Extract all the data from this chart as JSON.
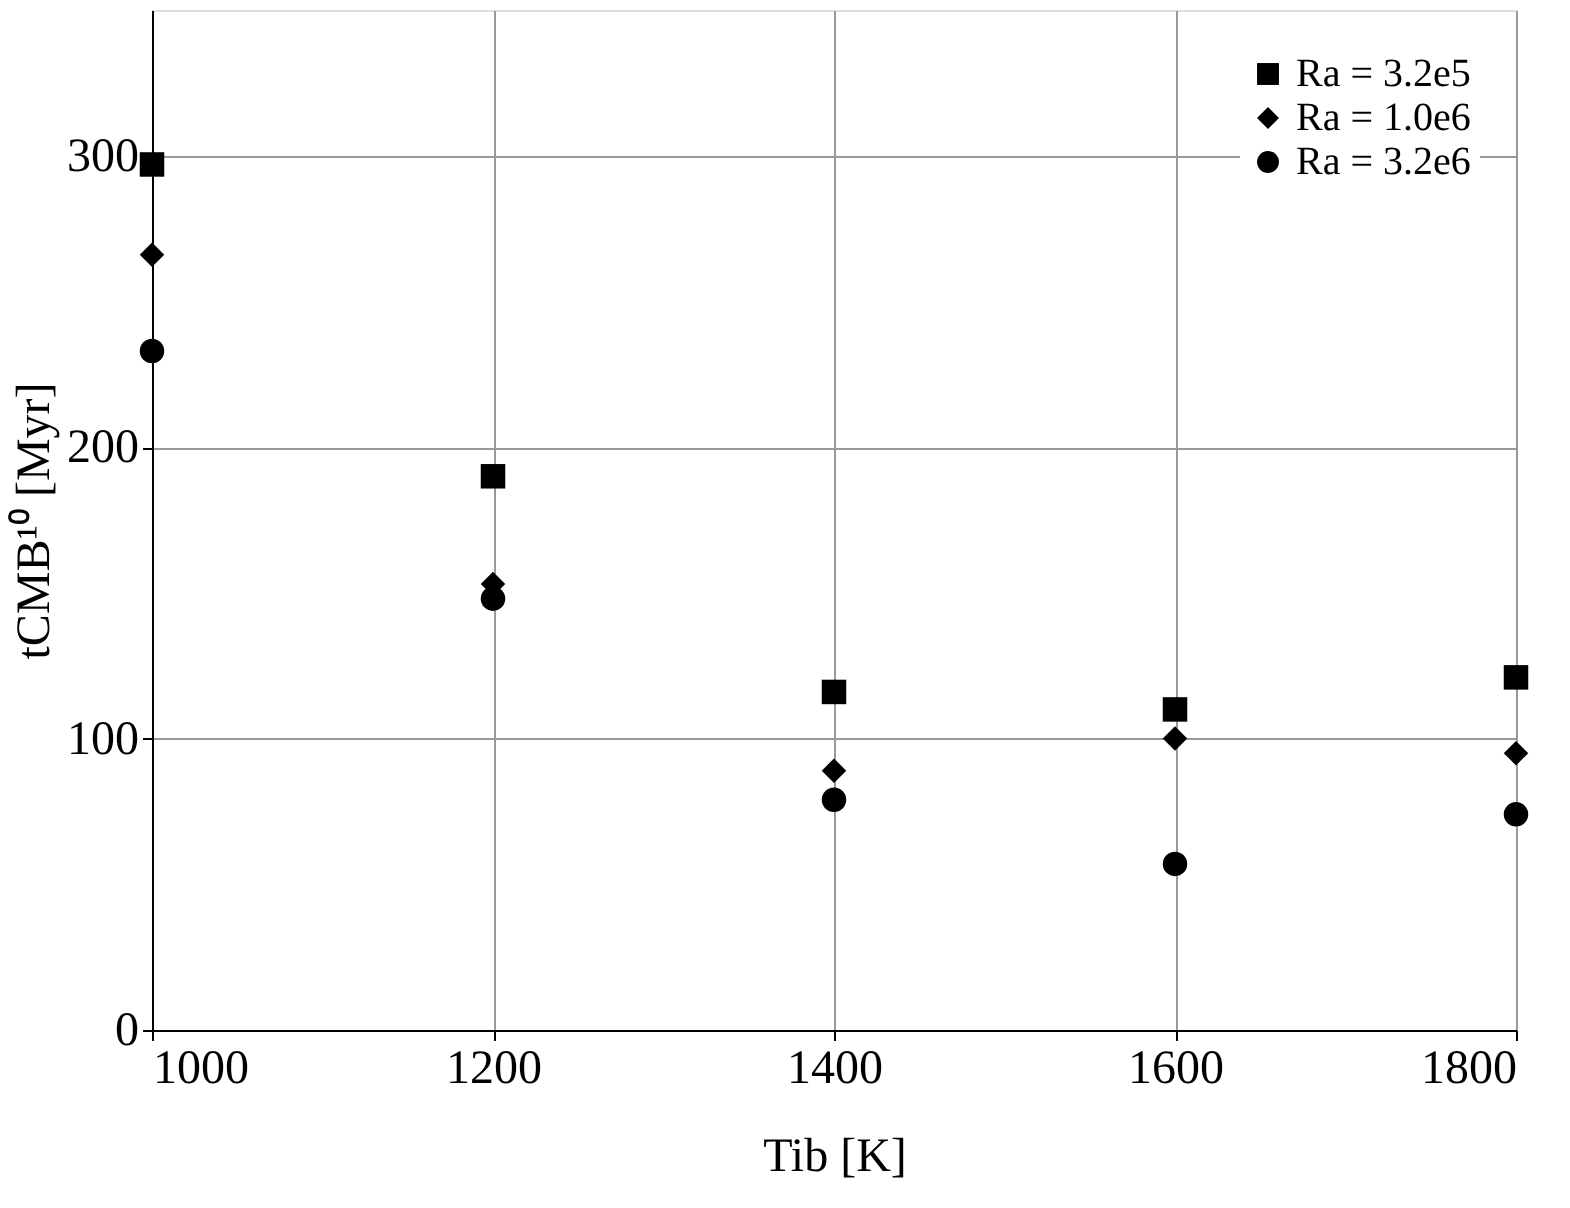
{
  "chart_data": {
    "type": "scatter",
    "xlabel": "Tib [K]",
    "ylabel": "tCMB¹⁰ [Myr]",
    "x": [
      1000,
      1200,
      1400,
      1600,
      1800
    ],
    "series": [
      {
        "name": "Ra = 3.2e5",
        "color": "#000000",
        "marker": "square",
        "values": [
          297,
          190,
          116,
          110,
          121
        ]
      },
      {
        "name": "Ra = 1.0e6",
        "color": "#000000",
        "marker": "diamond",
        "values": [
          266,
          153,
          89,
          100,
          95
        ]
      },
      {
        "name": "Ra = 3.2e6",
        "color": "#000000",
        "marker": "circle",
        "values": [
          233,
          148,
          79,
          57,
          74
        ]
      }
    ],
    "xlim": [
      1000,
      1800
    ],
    "xticks": [
      1000,
      1200,
      1400,
      1600,
      1800
    ],
    "ylim": [
      0,
      350
    ],
    "yticks": [
      0,
      100,
      200,
      300
    ],
    "grid": true,
    "legend": "top right"
  }
}
